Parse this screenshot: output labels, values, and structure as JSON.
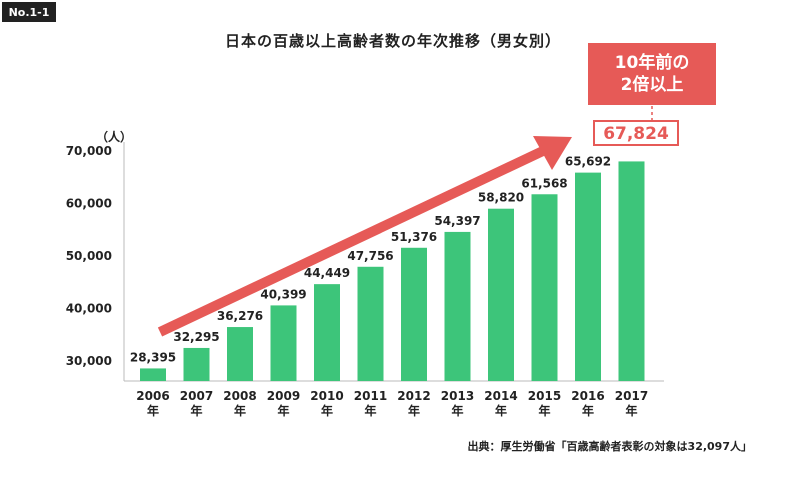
{
  "badge": "No.1-1",
  "title": "日本の百歳以上高齢者数の年次推移（男女別）",
  "callout": {
    "line1": "10年前の",
    "line2": "2倍以上"
  },
  "highlight_value": "67,824",
  "source": "出典：厚生労働省「百歳高齢者表彰の対象は32,097人」",
  "colors": {
    "bar": "#3dc57a",
    "arrow": "#e65a57",
    "callout": "#e65a57",
    "axis": "#bbbbbb"
  },
  "chart_data": {
    "type": "bar",
    "title": "日本の百歳以上高齢者数の年次推移（男女別）",
    "unit_label": "（人）",
    "categories": [
      "2006年",
      "2007年",
      "2008年",
      "2009年",
      "2010年",
      "2011年",
      "2012年",
      "2013年",
      "2014年",
      "2015年",
      "2016年",
      "2017年"
    ],
    "x_year_labels": [
      "2006",
      "2007",
      "2008",
      "2009",
      "2010",
      "2011",
      "2012",
      "2013",
      "2014",
      "2015",
      "2016",
      "2017"
    ],
    "x_suffix": "年",
    "values": [
      28395,
      32295,
      36276,
      40399,
      44449,
      47756,
      51376,
      54397,
      58820,
      61568,
      65692,
      67824
    ],
    "value_labels": [
      "28,395",
      "32,295",
      "36,276",
      "40,399",
      "44,449",
      "47,756",
      "51,376",
      "54,397",
      "58,820",
      "61,568",
      "65,692",
      "67,824"
    ],
    "ylim": [
      26000,
      70000
    ],
    "yticks": [
      30000,
      40000,
      50000,
      60000,
      70000
    ],
    "ytick_labels": [
      "30,000",
      "40,000",
      "50,000",
      "60,000",
      "70,000"
    ],
    "grid": false
  }
}
